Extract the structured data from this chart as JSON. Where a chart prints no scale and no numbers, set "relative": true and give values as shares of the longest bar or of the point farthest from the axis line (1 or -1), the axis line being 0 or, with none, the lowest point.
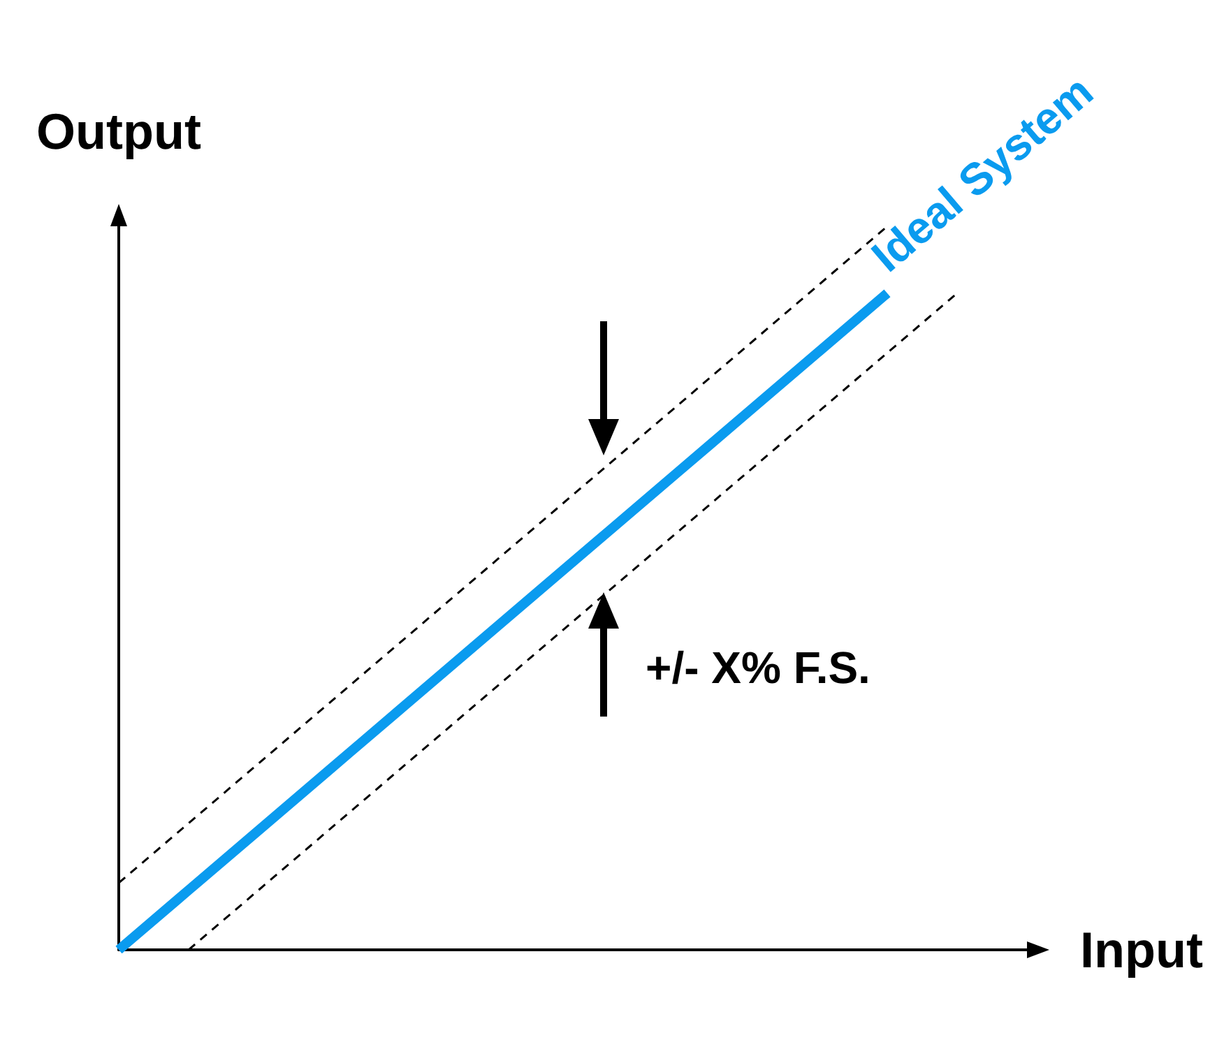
{
  "chart_data": {
    "type": "line",
    "relative": true,
    "xlabel": "Input",
    "ylabel": "Output",
    "annotations": [
      "+/- X% F.S."
    ],
    "marker": "none",
    "grid": false,
    "categories": [
      null,
      null,
      null,
      null,
      null,
      null,
      null,
      null,
      null,
      null,
      null,
      null,
      null,
      null
    ],
    "series": [
      {
        "name": "Ideal System",
        "color": "#0a9bef",
        "line_style": "solid",
        "values": [
          0,
          0.0825,
          0.165,
          0.2475,
          0.33,
          0.4125,
          0.495,
          0.5775,
          0.66,
          0.7425,
          0.825,
          0.9075,
          null,
          null
        ]
      },
      {
        "color": "#000000",
        "line_style": "dashed",
        "values": [
          0.0925,
          0.175,
          0.2575,
          0.34,
          0.4225,
          0.505,
          0.5875,
          0.67,
          0.7525,
          0.835,
          0.9175,
          1,
          null,
          null
        ]
      },
      {
        "color": "#000000",
        "line_style": "dashed",
        "values": [
          null,
          0,
          0.0825,
          0.165,
          0.2475,
          0.33,
          0.4125,
          0.495,
          0.5775,
          0.66,
          0.7425,
          0.825,
          0.9075,
          null
        ]
      }
    ]
  }
}
